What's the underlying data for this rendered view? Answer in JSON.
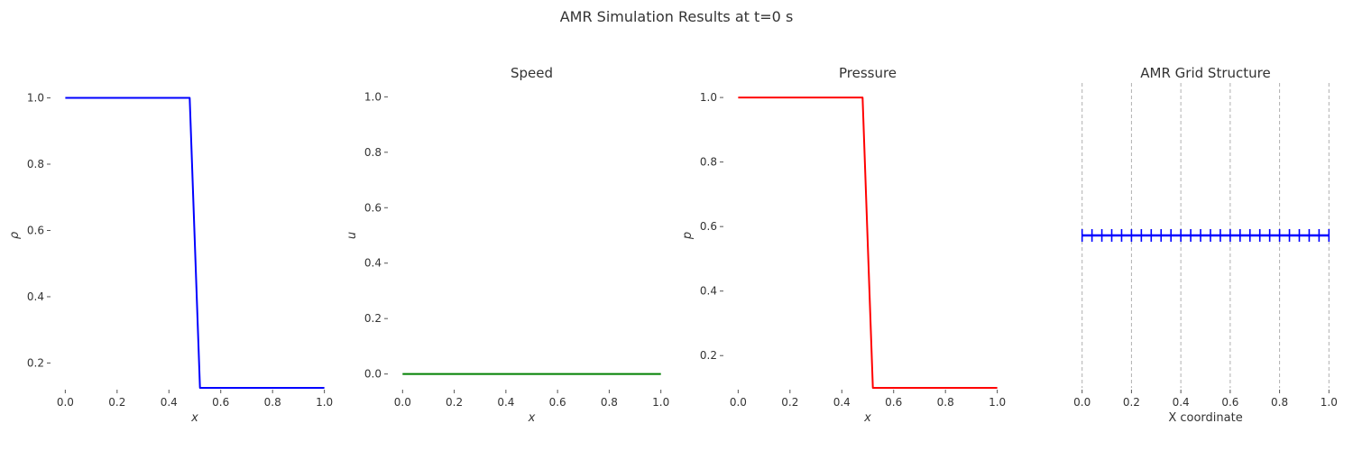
{
  "figure": {
    "suptitle": "AMR Simulation Results at t=0 s"
  },
  "colors": {
    "density": "#0000ff",
    "speed": "#008000",
    "pressure": "#ff0000",
    "grid": "#0000ff",
    "gridline": "#b0b0b0",
    "text": "#333333"
  },
  "chart_data": [
    {
      "type": "line",
      "title": "",
      "xlabel": "x",
      "ylabel": "ρ",
      "xlim": [
        -0.05,
        1.05
      ],
      "ylim": [
        0.125,
        1.045
      ],
      "xticks": [
        0.0,
        0.2,
        0.4,
        0.6,
        0.8,
        1.0
      ],
      "xtick_labels": [
        "0.0",
        "0.2",
        "0.4",
        "0.6",
        "0.8",
        "1.0"
      ],
      "yticks": [
        0.2,
        0.4,
        0.6,
        0.8,
        1.0
      ],
      "ytick_labels": [
        "0.2",
        "0.4",
        "0.6",
        "0.8",
        "1.0"
      ],
      "grid": false,
      "series": [
        {
          "color": "#0000ff",
          "x": [
            0.0,
            0.48,
            0.52,
            1.0
          ],
          "y": [
            1.0,
            1.0,
            0.125,
            0.125
          ]
        }
      ]
    },
    {
      "type": "line",
      "title": "Speed",
      "xlabel": "x",
      "ylabel": "u",
      "xlim": [
        -0.05,
        1.05
      ],
      "ylim": [
        -0.05,
        1.05
      ],
      "xticks": [
        0.0,
        0.2,
        0.4,
        0.6,
        0.8,
        1.0
      ],
      "xtick_labels": [
        "0.0",
        "0.2",
        "0.4",
        "0.6",
        "0.8",
        "1.0"
      ],
      "yticks": [
        0.0,
        0.2,
        0.4,
        0.6,
        0.8,
        1.0
      ],
      "ytick_labels": [
        "0.0",
        "0.2",
        "0.4",
        "0.6",
        "0.8",
        "1.0"
      ],
      "grid": false,
      "series": [
        {
          "color": "#008000",
          "x": [
            0.0,
            1.0
          ],
          "y": [
            0.0,
            0.0
          ]
        }
      ]
    },
    {
      "type": "line",
      "title": "Pressure",
      "xlabel": "x",
      "ylabel": "p",
      "xlim": [
        -0.05,
        1.05
      ],
      "ylim": [
        0.1,
        1.045
      ],
      "xticks": [
        0.0,
        0.2,
        0.4,
        0.6,
        0.8,
        1.0
      ],
      "xtick_labels": [
        "0.0",
        "0.2",
        "0.4",
        "0.6",
        "0.8",
        "1.0"
      ],
      "yticks": [
        0.2,
        0.4,
        0.6,
        0.8,
        1.0
      ],
      "ytick_labels": [
        "0.2",
        "0.4",
        "0.6",
        "0.8",
        "1.0"
      ],
      "grid": false,
      "series": [
        {
          "color": "#ff0000",
          "x": [
            0.0,
            0.48,
            0.52,
            1.0
          ],
          "y": [
            1.0,
            1.0,
            0.1,
            0.1
          ]
        }
      ]
    },
    {
      "type": "scatter",
      "title": "AMR Grid Structure",
      "xlabel": "X coordinate",
      "ylabel": "",
      "xlim": [
        -0.05,
        1.05
      ],
      "ylim": [
        0.0,
        1.0
      ],
      "xticks": [
        0.0,
        0.2,
        0.4,
        0.6,
        0.8,
        1.0
      ],
      "xtick_labels": [
        "0.0",
        "0.2",
        "0.4",
        "0.6",
        "0.8",
        "1.0"
      ],
      "grid": true,
      "grid_style": "dashed vertical",
      "level_y": 0.5,
      "marker": "+",
      "cell_edges": [
        0.0,
        0.04,
        0.08,
        0.12,
        0.16,
        0.2,
        0.24,
        0.28,
        0.32,
        0.36,
        0.4,
        0.44,
        0.48,
        0.52,
        0.56,
        0.6,
        0.64,
        0.68,
        0.72,
        0.76,
        0.8,
        0.84,
        0.88,
        0.92,
        0.96,
        1.0
      ]
    }
  ]
}
